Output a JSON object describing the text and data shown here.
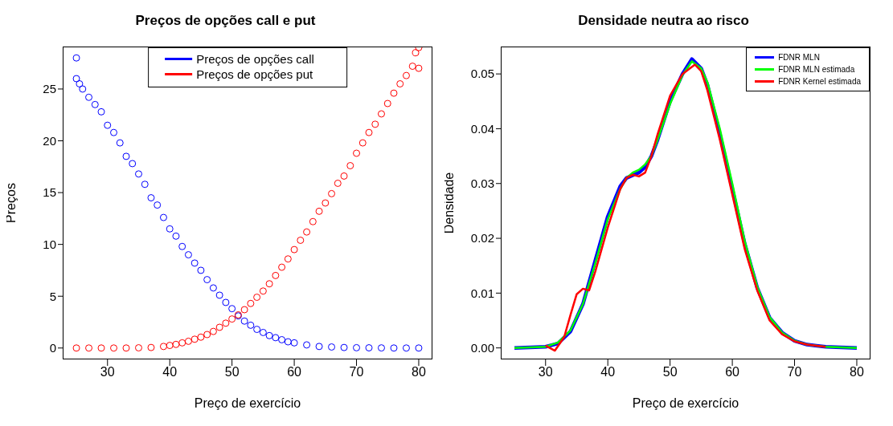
{
  "chart_data": [
    {
      "type": "scatter",
      "title": "Preços de opções call e put",
      "xlabel": "Preço de exercício",
      "ylabel": "Preços",
      "xlim": [
        22.8,
        82.2
      ],
      "ylim": [
        -1.1,
        29.1
      ],
      "xticks": [
        30,
        40,
        50,
        60,
        70,
        80
      ],
      "yticks": [
        0,
        5,
        10,
        15,
        20,
        25
      ],
      "legend": "top",
      "marker": "circle",
      "series": [
        {
          "name": "Preços de opções call",
          "color": "#0000ff",
          "x": [
            25,
            25,
            25.5,
            26,
            27,
            28,
            29,
            30,
            31,
            32,
            33,
            34,
            35,
            36,
            37,
            38,
            39,
            40,
            41,
            42,
            43,
            44,
            45,
            46,
            47,
            48,
            49,
            50,
            51,
            52,
            53,
            54,
            55,
            56,
            57,
            58,
            59,
            60,
            62,
            64,
            66,
            68,
            70,
            72,
            74,
            76,
            78,
            80
          ],
          "values": [
            28,
            26,
            25.5,
            25,
            24.2,
            23.5,
            22.8,
            21.5,
            20.8,
            19.8,
            18.5,
            17.8,
            16.8,
            15.8,
            14.5,
            13.8,
            12.6,
            11.5,
            10.8,
            9.8,
            9,
            8.2,
            7.5,
            6.6,
            5.8,
            5.1,
            4.4,
            3.8,
            3.1,
            2.6,
            2.2,
            1.8,
            1.5,
            1.2,
            1,
            0.8,
            0.6,
            0.5,
            0.3,
            0.15,
            0.1,
            0.05,
            0.03,
            0.02,
            0.01,
            0,
            0,
            0
          ]
        },
        {
          "name": "Preços de opções put",
          "color": "#ff0000",
          "x": [
            25,
            27,
            29,
            31,
            33,
            35,
            37,
            39,
            40,
            41,
            42,
            43,
            44,
            45,
            46,
            47,
            48,
            49,
            50,
            51,
            52,
            53,
            54,
            55,
            56,
            57,
            58,
            59,
            60,
            61,
            62,
            63,
            64,
            65,
            66,
            67,
            68,
            69,
            70,
            71,
            72,
            73,
            74,
            75,
            76,
            77,
            78,
            79,
            79.5,
            80,
            80
          ],
          "values": [
            0,
            0,
            0,
            0,
            0,
            0.02,
            0.05,
            0.15,
            0.25,
            0.35,
            0.5,
            0.65,
            0.85,
            1.05,
            1.3,
            1.6,
            2,
            2.4,
            2.8,
            3.2,
            3.7,
            4.3,
            4.9,
            5.5,
            6.2,
            7,
            7.8,
            8.6,
            9.5,
            10.4,
            11.2,
            12.2,
            13.2,
            14,
            14.9,
            15.9,
            16.6,
            17.6,
            18.8,
            19.8,
            20.8,
            21.6,
            22.6,
            23.6,
            24.6,
            25.5,
            26.3,
            27.2,
            28.5,
            29,
            27
          ]
        }
      ]
    },
    {
      "type": "line",
      "title": "Densidade neutra ao risco",
      "xlabel": "Preço de exercício",
      "ylabel": "Densidade",
      "xlim": [
        22.8,
        82.2
      ],
      "ylim": [
        -0.0021,
        0.055
      ],
      "xticks": [
        30,
        40,
        50,
        60,
        70,
        80
      ],
      "yticks": [
        {
          "value": 0,
          "label": "0.00"
        },
        {
          "value": 0.01,
          "label": "0.01"
        },
        {
          "value": 0.02,
          "label": "0.02"
        },
        {
          "value": 0.03,
          "label": "0.03"
        },
        {
          "value": 0.04,
          "label": "0.04"
        },
        {
          "value": 0.05,
          "label": "0.05"
        }
      ],
      "legend": "top right",
      "marker": "none",
      "series": [
        {
          "name": "FDNR MLN",
          "color": "#0000ff",
          "x": [
            25,
            30,
            32,
            34,
            36,
            38,
            40,
            42,
            43,
            44,
            45,
            46,
            47,
            48,
            50,
            52,
            53.5,
            55,
            56,
            58,
            60,
            62,
            64,
            66,
            68,
            70,
            72,
            75,
            80
          ],
          "values": [
            0,
            0.0002,
            0.0008,
            0.003,
            0.008,
            0.016,
            0.024,
            0.0295,
            0.031,
            0.0315,
            0.032,
            0.033,
            0.035,
            0.038,
            0.045,
            0.05,
            0.0527,
            0.051,
            0.048,
            0.039,
            0.029,
            0.019,
            0.011,
            0.0055,
            0.0028,
            0.0013,
            0.0006,
            0.0002,
            0
          ]
        },
        {
          "name": "FDNR MLN estimada",
          "color": "#00ff00",
          "x": [
            25,
            30,
            32,
            34,
            36,
            38,
            40,
            42,
            43,
            44,
            45,
            46,
            47,
            48,
            50,
            52,
            53.5,
            55,
            56,
            58,
            60,
            62,
            64,
            66,
            68,
            70,
            72,
            75,
            80
          ],
          "values": [
            0,
            0.0002,
            0.001,
            0.0032,
            0.008,
            0.0155,
            0.0235,
            0.029,
            0.031,
            0.032,
            0.0325,
            0.0335,
            0.035,
            0.038,
            0.0445,
            0.0498,
            0.0523,
            0.051,
            0.0485,
            0.04,
            0.03,
            0.0195,
            0.0112,
            0.0056,
            0.0028,
            0.0013,
            0.0006,
            0.0002,
            0
          ]
        },
        {
          "name": "FDNR Kernel estimada",
          "color": "#ff0000",
          "x": [
            30,
            31.5,
            33,
            34,
            35,
            36,
            37,
            38,
            40,
            42,
            43,
            44,
            45,
            46,
            47,
            48,
            50,
            52,
            54,
            55,
            56,
            58,
            60,
            62,
            64,
            66,
            68,
            70,
            72,
            75
          ],
          "values": [
            0.0004,
            -0.0005,
            0.002,
            0.006,
            0.0098,
            0.0108,
            0.0105,
            0.014,
            0.022,
            0.029,
            0.031,
            0.0316,
            0.0313,
            0.032,
            0.035,
            0.039,
            0.046,
            0.05,
            0.0517,
            0.0505,
            0.047,
            0.038,
            0.028,
            0.018,
            0.0105,
            0.005,
            0.0025,
            0.0012,
            0.0006,
            0.0002
          ]
        }
      ]
    }
  ]
}
